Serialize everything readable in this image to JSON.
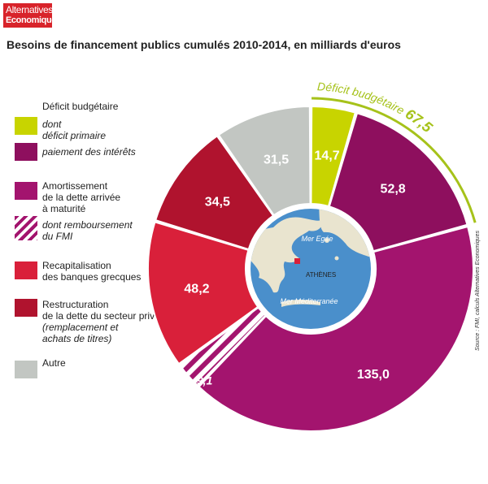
{
  "logo": {
    "line1": "Alternatives",
    "line2": "Economiques"
  },
  "title": "Besoins de financement publics cumulés 2010-2014, en milliards d'euros",
  "source": "Source : FMI, calculs Alternatives Economiques",
  "legend": {
    "heading": "Déficit budgétaire",
    "items": [
      {
        "lines": [
          "dont",
          "déficit primaire"
        ],
        "italic": true,
        "color": "#c8d400"
      },
      {
        "lines": [
          "paiement des intérêts"
        ],
        "italic": true,
        "color": "#8e0f5e"
      },
      {
        "lines": [
          "Amortissement",
          "de la dette arrivée",
          "à maturité"
        ],
        "italic": false,
        "color": "#a3146e"
      },
      {
        "lines": [
          "dont remboursement",
          "du FMI"
        ],
        "italic": true,
        "color": "#a3146e",
        "hatched": true
      },
      {
        "lines": [
          "Recapitalisation",
          "des banques grecques"
        ],
        "italic": false,
        "color": "#d9203a"
      },
      {
        "lines": [
          "Restructuration",
          "de la dette du secteur privé"
        ],
        "italic": false,
        "color": "#b0132e"
      },
      {
        "lines": [
          "(remplacement et",
          "achats de titres)"
        ],
        "italic": true,
        "color": null
      },
      {
        "lines": [
          "Autre"
        ],
        "italic": false,
        "color": "#c2c6c2"
      }
    ]
  },
  "map": {
    "sea1": "Mer Egée",
    "city": "ATHÈNES",
    "sea2": "Mer Méditerranée",
    "sea_color": "#4a8fcb",
    "land_color": "#e9e4cf"
  },
  "chart_data": {
    "type": "pie",
    "style": "donut",
    "bracket": {
      "label": "Déficit budgétaire",
      "value": "67,5"
    },
    "slices": [
      {
        "label": "déficit primaire",
        "value": 14.7,
        "display": "14,7",
        "color": "#c8d400"
      },
      {
        "label": "paiement des intérêts",
        "value": 52.8,
        "display": "52,8",
        "color": "#8e0f5e"
      },
      {
        "label": "Amortissement de la dette arrivée à maturité",
        "value": 135.0,
        "display": "135,0",
        "color": "#a3146e"
      },
      {
        "label": "dont remboursement du FMI",
        "value": 9.1,
        "display": "9,1",
        "color": "#a3146e",
        "hatched": true
      },
      {
        "label": "Recapitalisation des banques grecques",
        "value": 48.2,
        "display": "48,2",
        "color": "#d9203a"
      },
      {
        "label": "Restructuration de la dette du secteur privé",
        "value": 34.5,
        "display": "34,5",
        "color": "#b0132e"
      },
      {
        "label": "Autre",
        "value": 31.5,
        "display": "31,5",
        "color": "#c2c6c2"
      }
    ]
  }
}
